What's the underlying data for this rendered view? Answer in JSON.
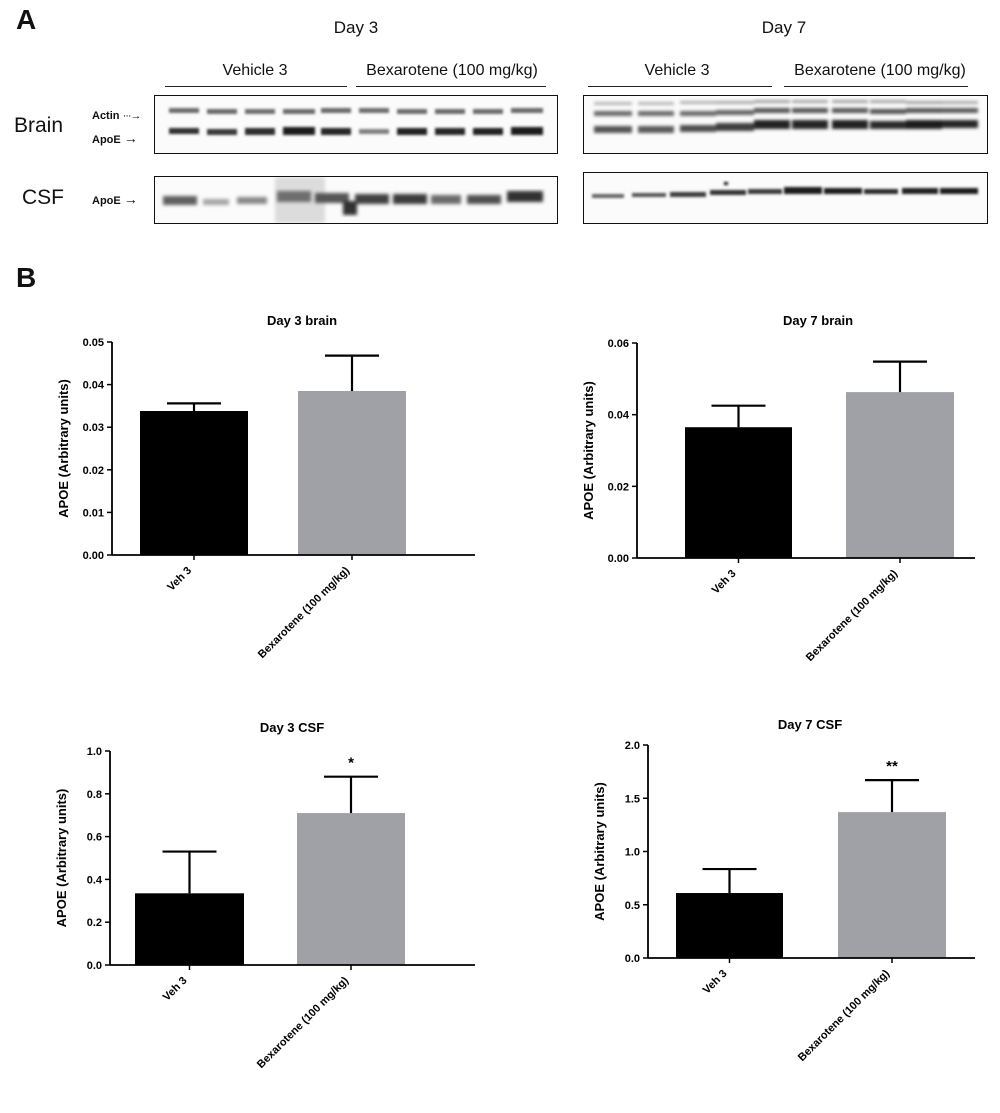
{
  "panel_a": {
    "letter": "A",
    "day3_label": "Day 3",
    "day7_label": "Day 7",
    "vehicle_label": "Vehicle 3",
    "bexarotene_label": "Bexarotene (100 mg/kg)",
    "brain_label": "Brain",
    "csf_label": "CSF",
    "actin_label": "Actin",
    "apoe_label": "ApoE",
    "arrow_glyph": "→"
  },
  "panel_b": {
    "letter": "B"
  },
  "chart_data": [
    {
      "type": "bar",
      "title": "Day 3 brain",
      "categories": [
        "Veh 3",
        "Bexarotene (100 mg/kg)"
      ],
      "values": [
        0.0338,
        0.0385
      ],
      "errors": [
        0.0018,
        0.0083
      ],
      "colors": [
        "#000000",
        "#a0a1a6"
      ],
      "ylabel": "APOE (Arbitrary units)",
      "ylim": [
        0,
        0.05
      ],
      "yticks": [
        0,
        0.01,
        0.02,
        0.03,
        0.04,
        0.05
      ],
      "yticklabels": [
        "0.00",
        "0.01",
        "0.02",
        "0.03",
        "0.04",
        "0.05"
      ],
      "annotations": [
        "",
        ""
      ]
    },
    {
      "type": "bar",
      "title": "Day 7 brain",
      "categories": [
        "Veh 3",
        "Bexarotene (100 mg/kg)"
      ],
      "values": [
        0.0365,
        0.0463
      ],
      "errors": [
        0.006,
        0.0085
      ],
      "colors": [
        "#000000",
        "#a0a1a6"
      ],
      "ylabel": "APOE (Arbitrary units)",
      "ylim": [
        0,
        0.06
      ],
      "yticks": [
        0,
        0.02,
        0.04,
        0.06
      ],
      "yticklabels": [
        "0.00",
        "0.02",
        "0.04",
        "0.06"
      ],
      "annotations": [
        "",
        ""
      ]
    },
    {
      "type": "bar",
      "title": "Day 3 CSF",
      "categories": [
        "Veh 3",
        "Bexarotene (100 mg/kg)"
      ],
      "values": [
        0.335,
        0.71
      ],
      "errors": [
        0.195,
        0.17
      ],
      "colors": [
        "#000000",
        "#a0a1a6"
      ],
      "ylabel": "APOE (Arbitrary units)",
      "ylim": [
        0,
        1.0
      ],
      "yticks": [
        0,
        0.2,
        0.4,
        0.6,
        0.8,
        1.0
      ],
      "yticklabels": [
        "0.0",
        "0.2",
        "0.4",
        "0.6",
        "0.8",
        "1.0"
      ],
      "annotations": [
        "",
        "*"
      ]
    },
    {
      "type": "bar",
      "title": "Day 7 CSF",
      "categories": [
        "Veh 3",
        "Bexarotene (100 mg/kg)"
      ],
      "values": [
        0.61,
        1.37
      ],
      "errors": [
        0.225,
        0.3
      ],
      "colors": [
        "#000000",
        "#a0a1a6"
      ],
      "ylabel": "APOE (Arbitrary units)",
      "ylim": [
        0,
        2.0
      ],
      "yticks": [
        0,
        0.5,
        1.0,
        1.5,
        2.0
      ],
      "yticklabels": [
        "0.0",
        "0.5",
        "1.0",
        "1.5",
        "2.0"
      ],
      "annotations": [
        "",
        "**"
      ]
    }
  ]
}
